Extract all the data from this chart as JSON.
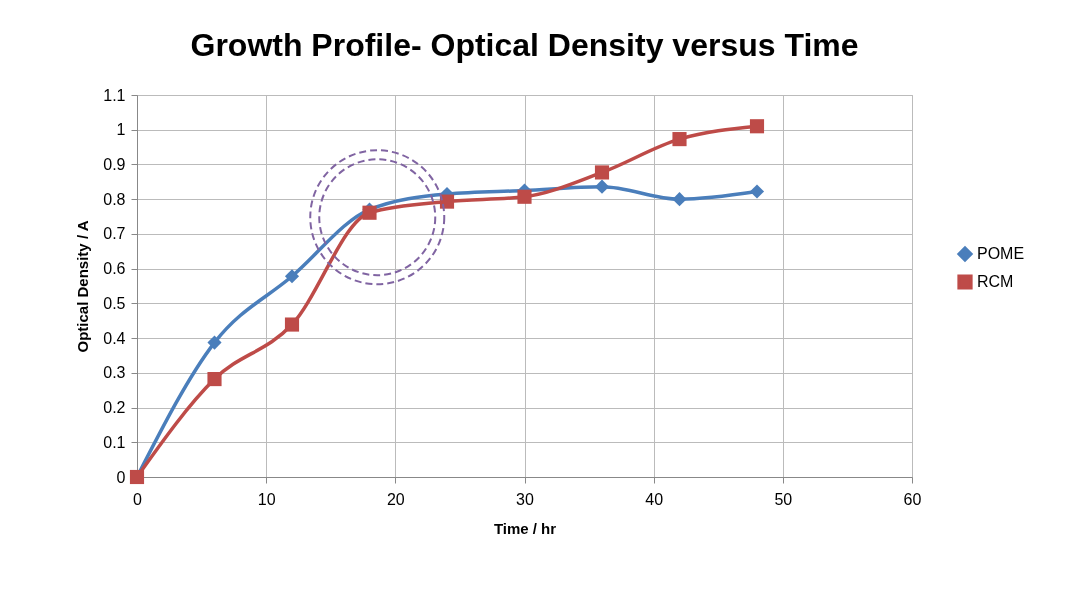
{
  "chart_data": {
    "type": "line",
    "title": "Growth Profile- Optical Density versus Time",
    "xlabel": "Time / hr",
    "ylabel": "Optical Density / A",
    "x": [
      0,
      6,
      12,
      18,
      24,
      30,
      36,
      42,
      48
    ],
    "series": [
      {
        "name": "POME",
        "color": "#4a7ebb",
        "marker": "diamond",
        "values": [
          0,
          0.387,
          0.578,
          0.77,
          0.815,
          0.825,
          0.836,
          0.8,
          0.822
        ]
      },
      {
        "name": "RCM",
        "color": "#be4b48",
        "marker": "square",
        "values": [
          0,
          0.282,
          0.439,
          0.761,
          0.793,
          0.807,
          0.877,
          0.973,
          1.01
        ]
      }
    ],
    "xlim": [
      0,
      60
    ],
    "xticks": [
      0,
      10,
      20,
      30,
      40,
      50,
      60
    ],
    "ylim": [
      0,
      1.1
    ],
    "yticks": [
      0,
      0.1,
      0.2,
      0.3,
      0.4,
      0.5,
      0.6,
      0.7,
      0.8,
      0.9,
      1,
      1.1
    ],
    "grid": true,
    "legend": "right",
    "line_style": "solid"
  }
}
